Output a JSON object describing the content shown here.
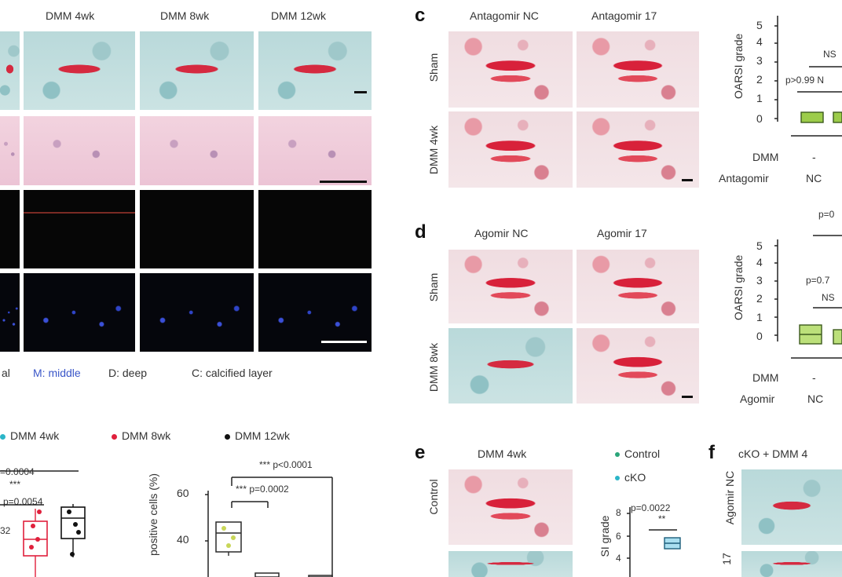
{
  "panel_a": {
    "col_headers": [
      "DMM 4wk",
      "DMM 8wk",
      "DMM 12wk"
    ],
    "zone_legend": [
      "al",
      "M: middle",
      "D: deep",
      "C: calcified layer"
    ]
  },
  "panel_b": {
    "legend": [
      "DMM 4wk",
      "DMM 8wk",
      "DMM 12wk"
    ],
    "legend_colors": [
      "#2bb5c8",
      "#e0203c",
      "#111111"
    ],
    "left_annotations": [
      "=0.0004",
      "***",
      "p=0.0054",
      "32"
    ],
    "right_annotations": [
      "*** p<0.0001",
      "*** p=0.0002"
    ],
    "right_ylabel": "positive cells (%)",
    "right_yticks": [
      "60",
      "40"
    ]
  },
  "panel_c": {
    "letter": "c",
    "col_headers": [
      "Antagomir NC",
      "Antagomir 17"
    ],
    "row_labels": [
      "Sham",
      "DMM 4wk"
    ],
    "ylabel": "OARSI grade",
    "yticks": [
      "5",
      "4",
      "3",
      "2",
      "1",
      "0"
    ],
    "annotations": [
      "NS",
      "p>0.99 N"
    ],
    "x_rows": [
      {
        "label": "DMM",
        "value": "-"
      },
      {
        "label": "Antagomir",
        "value": "NC"
      }
    ]
  },
  "panel_d": {
    "letter": "d",
    "col_headers": [
      "Agomir NC",
      "Agomir 17"
    ],
    "row_labels": [
      "Sham",
      "DMM 8wk"
    ],
    "ylabel": "OARSI grade",
    "yticks": [
      "5",
      "4",
      "3",
      "2",
      "1",
      "0"
    ],
    "annotations": [
      "p=0",
      "p=0.7",
      "NS"
    ],
    "x_rows": [
      {
        "label": "DMM",
        "value": "-"
      },
      {
        "label": "Agomir",
        "value": "NC"
      }
    ]
  },
  "panel_e": {
    "letter": "e",
    "col_header": "DMM 4wk",
    "row_labels": [
      "Control"
    ],
    "legend": [
      "Control",
      "cKO"
    ],
    "legend_colors": [
      "#2aa57a",
      "#2bb5c8"
    ],
    "ylabel": "SI grade",
    "yticks": [
      "8",
      "6",
      "4"
    ],
    "annotations": [
      "p=0.0022",
      "**"
    ]
  },
  "panel_f": {
    "letter": "f",
    "title": "cKO + DMM 4",
    "row_labels": [
      "Agomir NC",
      "17"
    ]
  }
}
